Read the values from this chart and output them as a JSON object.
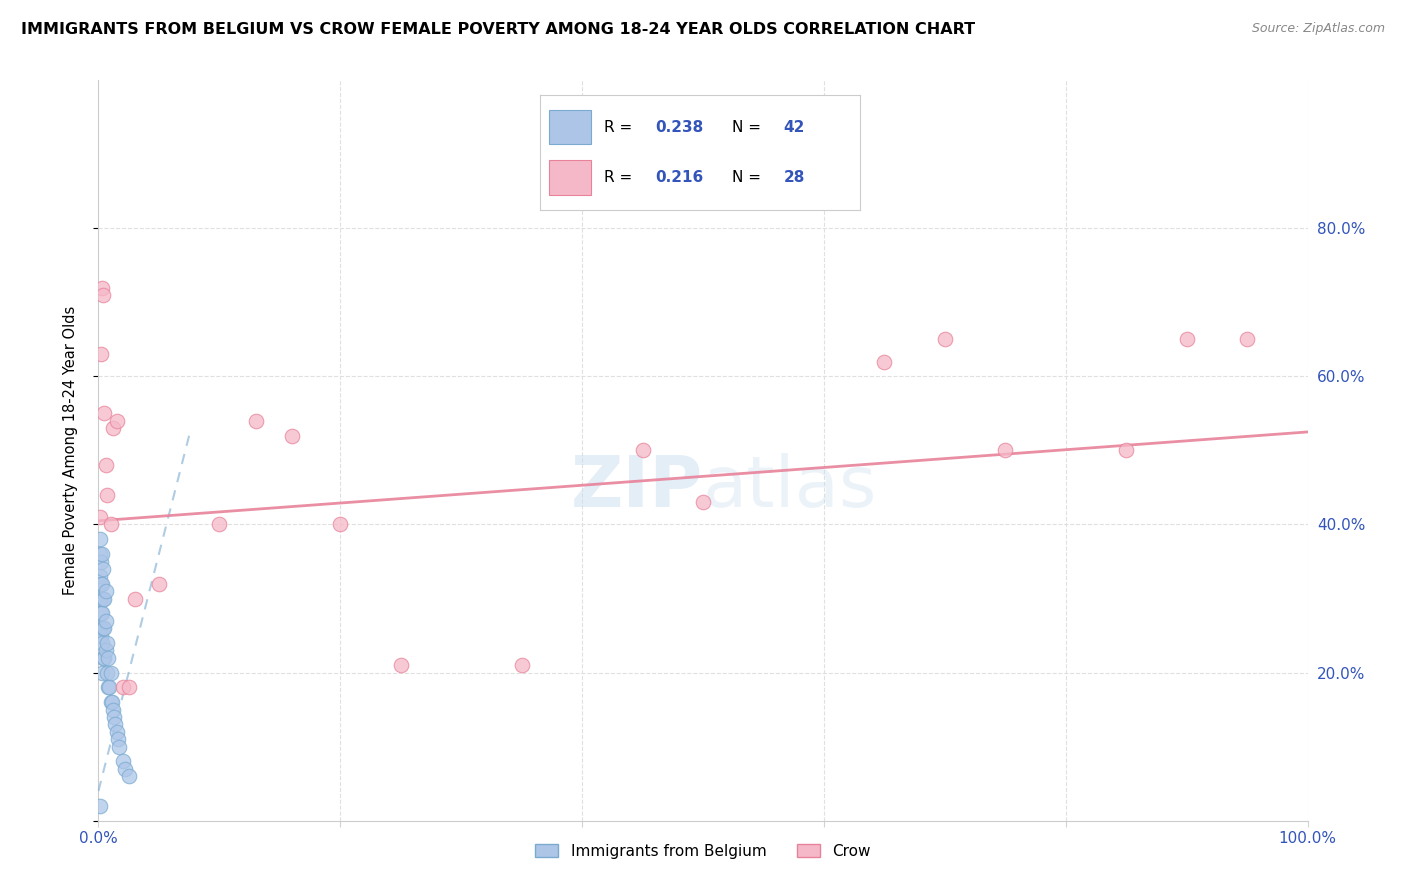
{
  "title": "IMMIGRANTS FROM BELGIUM VS CROW FEMALE POVERTY AMONG 18-24 YEAR OLDS CORRELATION CHART",
  "source": "Source: ZipAtlas.com",
  "ylabel": "Female Poverty Among 18-24 Year Olds",
  "xlim": [
    0.0,
    1.0
  ],
  "ylim": [
    0.0,
    1.0
  ],
  "xtick_positions": [
    0.0,
    0.2,
    0.4,
    0.6,
    0.8,
    1.0
  ],
  "xticklabels": [
    "0.0%",
    "",
    "",
    "",
    "",
    "100.0%"
  ],
  "ytick_positions": [
    0.0,
    0.2,
    0.4,
    0.6,
    0.8
  ],
  "yticklabels_right": [
    "",
    "20.0%",
    "40.0%",
    "60.0%",
    "80.0%"
  ],
  "legend_R": [
    "0.238",
    "0.216"
  ],
  "legend_N": [
    "42",
    "28"
  ],
  "legend_labels": [
    "Immigrants from Belgium",
    "Crow"
  ],
  "blue_fill": "#adc6e8",
  "blue_edge": "#7aaad0",
  "pink_fill": "#f5b8c8",
  "pink_edge": "#e8829a",
  "blue_line_color": "#7aaad0",
  "pink_line_color": "#e8829a",
  "watermark_color": "#c8dff0",
  "grid_color": "#e0e0e0",
  "tick_color": "#3355bb",
  "blue_x": [
    0.001,
    0.001,
    0.001,
    0.001,
    0.001,
    0.002,
    0.002,
    0.002,
    0.002,
    0.003,
    0.003,
    0.003,
    0.003,
    0.003,
    0.004,
    0.004,
    0.004,
    0.004,
    0.005,
    0.005,
    0.005,
    0.006,
    0.006,
    0.006,
    0.007,
    0.007,
    0.008,
    0.008,
    0.009,
    0.01,
    0.01,
    0.011,
    0.012,
    0.013,
    0.014,
    0.015,
    0.016,
    0.017,
    0.02,
    0.022,
    0.025,
    0.001
  ],
  "blue_y": [
    0.26,
    0.3,
    0.33,
    0.36,
    0.38,
    0.25,
    0.28,
    0.32,
    0.35,
    0.2,
    0.24,
    0.28,
    0.32,
    0.36,
    0.22,
    0.26,
    0.3,
    0.34,
    0.22,
    0.26,
    0.3,
    0.23,
    0.27,
    0.31,
    0.2,
    0.24,
    0.18,
    0.22,
    0.18,
    0.16,
    0.2,
    0.16,
    0.15,
    0.14,
    0.13,
    0.12,
    0.11,
    0.1,
    0.08,
    0.07,
    0.06,
    0.02
  ],
  "pink_x": [
    0.001,
    0.002,
    0.003,
    0.004,
    0.005,
    0.006,
    0.007,
    0.01,
    0.012,
    0.015,
    0.02,
    0.025,
    0.03,
    0.05,
    0.1,
    0.13,
    0.16,
    0.2,
    0.25,
    0.35,
    0.45,
    0.5,
    0.65,
    0.7,
    0.75,
    0.85,
    0.9,
    0.95
  ],
  "pink_y": [
    0.41,
    0.63,
    0.72,
    0.71,
    0.55,
    0.48,
    0.44,
    0.4,
    0.53,
    0.54,
    0.18,
    0.18,
    0.3,
    0.32,
    0.4,
    0.54,
    0.52,
    0.4,
    0.21,
    0.21,
    0.5,
    0.43,
    0.62,
    0.65,
    0.5,
    0.5,
    0.65,
    0.65
  ],
  "blue_trend_x": [
    0.0,
    0.08
  ],
  "blue_trend_y0": 0.05,
  "blue_trend_slope": 5.0,
  "pink_trend_x0": 0.0,
  "pink_trend_y0": 0.4,
  "pink_trend_y1": 0.52
}
